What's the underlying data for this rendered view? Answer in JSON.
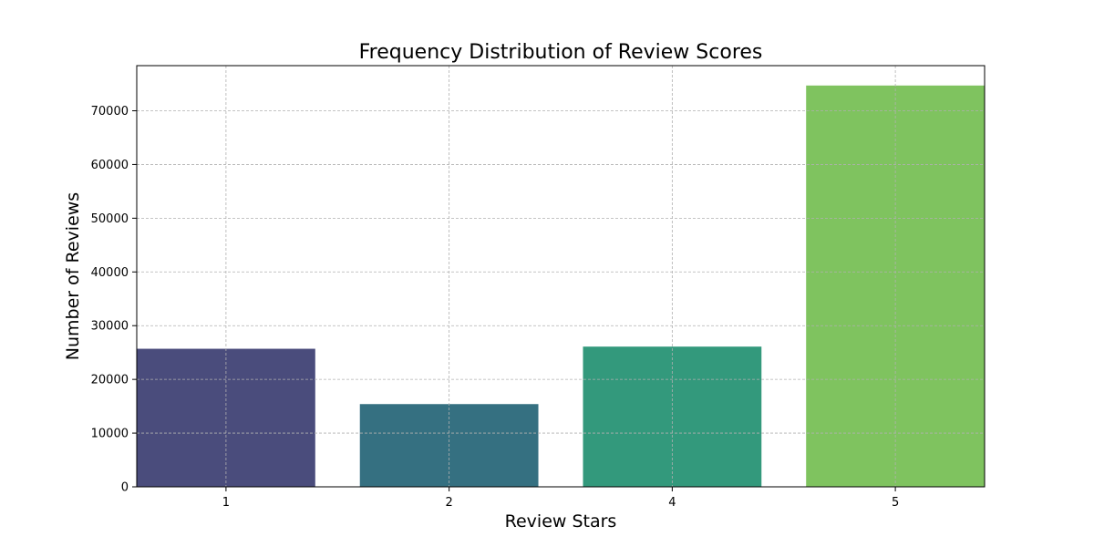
{
  "chart_data": {
    "type": "bar",
    "title": "Frequency Distribution of Review Scores",
    "xlabel": "Review Stars",
    "ylabel": "Number of Reviews",
    "categories": [
      "1",
      "2",
      "4",
      "5"
    ],
    "values": [
      25700,
      15400,
      26100,
      74700
    ],
    "colors": [
      "#4a4c7c",
      "#357081",
      "#33997c",
      "#7fc35f"
    ],
    "ylim": [
      0,
      78400
    ],
    "yticks": [
      0,
      10000,
      20000,
      30000,
      40000,
      50000,
      60000,
      70000
    ],
    "ytick_labels": [
      "0",
      "10000",
      "20000",
      "30000",
      "40000",
      "50000",
      "60000",
      "70000"
    ],
    "grid": true,
    "grid_color": "#b0b0b0",
    "legend": "none"
  }
}
